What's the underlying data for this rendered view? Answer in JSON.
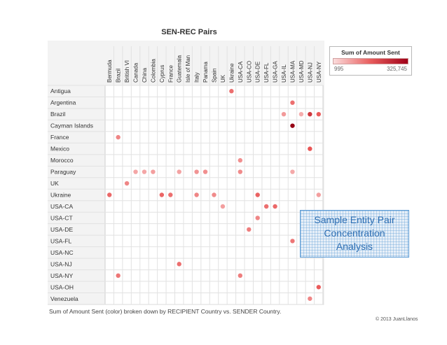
{
  "chart_data": {
    "type": "heatmap",
    "title": "SEN-REC Pairs",
    "caption": "Sum of Amount Sent (color) broken down by RECIPIENT Country vs. SENDER Country.",
    "columns": [
      "Bermuda",
      "Brazil",
      "British VI",
      "Canada",
      "China",
      "Colombia",
      "Cyprus",
      "France",
      "Guatemala",
      "Isle of Man",
      "Italy",
      "Panama",
      "Spain",
      "UK",
      "Ukraine",
      "USA-CA",
      "USA-CO",
      "USA-DE",
      "USA-FL",
      "USA-GA",
      "USA-IL",
      "USA-MA",
      "USA-MD",
      "USA-NJ",
      "USA-NY"
    ],
    "rows": [
      "Antigua",
      "Argentina",
      "Brazil",
      "Cayman Islands",
      "France",
      "Mexico",
      "Morocco",
      "Paraguay",
      "UK",
      "Ukraine",
      "USA-CA",
      "USA-CT",
      "USA-DE",
      "USA-FL",
      "USA-NC",
      "USA-NJ",
      "USA-NY",
      "USA-OH",
      "Venezuela"
    ],
    "legend": {
      "title": "Sum of Amount Sent",
      "min_label": "995",
      "max_label": "325,745",
      "min": 995,
      "max": 325745
    },
    "points": [
      {
        "row": "Antigua",
        "col": "Ukraine",
        "value": 80000
      },
      {
        "row": "Argentina",
        "col": "USA-MA",
        "value": 80000
      },
      {
        "row": "Brazil",
        "col": "USA-IL",
        "value": 30000
      },
      {
        "row": "Brazil",
        "col": "USA-MD",
        "value": 15000
      },
      {
        "row": "Brazil",
        "col": "USA-NJ",
        "value": 180000
      },
      {
        "row": "Brazil",
        "col": "USA-NY",
        "value": 110000
      },
      {
        "row": "Cayman Islands",
        "col": "USA-MA",
        "value": 325745
      },
      {
        "row": "France",
        "col": "Brazil",
        "value": 50000
      },
      {
        "row": "Mexico",
        "col": "USA-NJ",
        "value": 120000
      },
      {
        "row": "Morocco",
        "col": "USA-CA",
        "value": 40000
      },
      {
        "row": "Paraguay",
        "col": "Canada",
        "value": 20000
      },
      {
        "row": "Paraguay",
        "col": "China",
        "value": 20000
      },
      {
        "row": "Paraguay",
        "col": "Colombia",
        "value": 25000
      },
      {
        "row": "Paraguay",
        "col": "Guatemala",
        "value": 22000
      },
      {
        "row": "Paraguay",
        "col": "Italy",
        "value": 35000
      },
      {
        "row": "Paraguay",
        "col": "Panama",
        "value": 40000
      },
      {
        "row": "Paraguay",
        "col": "USA-CA",
        "value": 45000
      },
      {
        "row": "Paraguay",
        "col": "USA-MA",
        "value": 18000
      },
      {
        "row": "UK",
        "col": "British VI",
        "value": 50000
      },
      {
        "row": "Ukraine",
        "col": "Bermuda",
        "value": 90000
      },
      {
        "row": "Ukraine",
        "col": "Cyprus",
        "value": 95000
      },
      {
        "row": "Ukraine",
        "col": "France",
        "value": 80000
      },
      {
        "row": "Ukraine",
        "col": "Italy",
        "value": 50000
      },
      {
        "row": "Ukraine",
        "col": "Spain",
        "value": 45000
      },
      {
        "row": "Ukraine",
        "col": "USA-DE",
        "value": 100000
      },
      {
        "row": "Ukraine",
        "col": "USA-NY",
        "value": 25000
      },
      {
        "row": "USA-CA",
        "col": "UK",
        "value": 25000
      },
      {
        "row": "USA-CA",
        "col": "USA-FL",
        "value": 80000
      },
      {
        "row": "USA-CA",
        "col": "USA-GA",
        "value": 90000
      },
      {
        "row": "USA-CT",
        "col": "USA-DE",
        "value": 50000
      },
      {
        "row": "USA-DE",
        "col": "USA-CO",
        "value": 60000
      },
      {
        "row": "USA-FL",
        "col": "USA-MA",
        "value": 70000
      },
      {
        "row": "USA-NJ",
        "col": "Guatemala",
        "value": 80000
      },
      {
        "row": "USA-NY",
        "col": "Brazil",
        "value": 70000
      },
      {
        "row": "USA-NY",
        "col": "USA-CA",
        "value": 60000
      },
      {
        "row": "USA-OH",
        "col": "USA-NY",
        "value": 110000
      },
      {
        "row": "Venezuela",
        "col": "USA-NJ",
        "value": 50000
      }
    ]
  },
  "overlay": {
    "lines": [
      "Sample Entity Pair",
      "Concentration",
      "Analysis"
    ]
  },
  "copyright": "© 2013 JuanLlanos"
}
